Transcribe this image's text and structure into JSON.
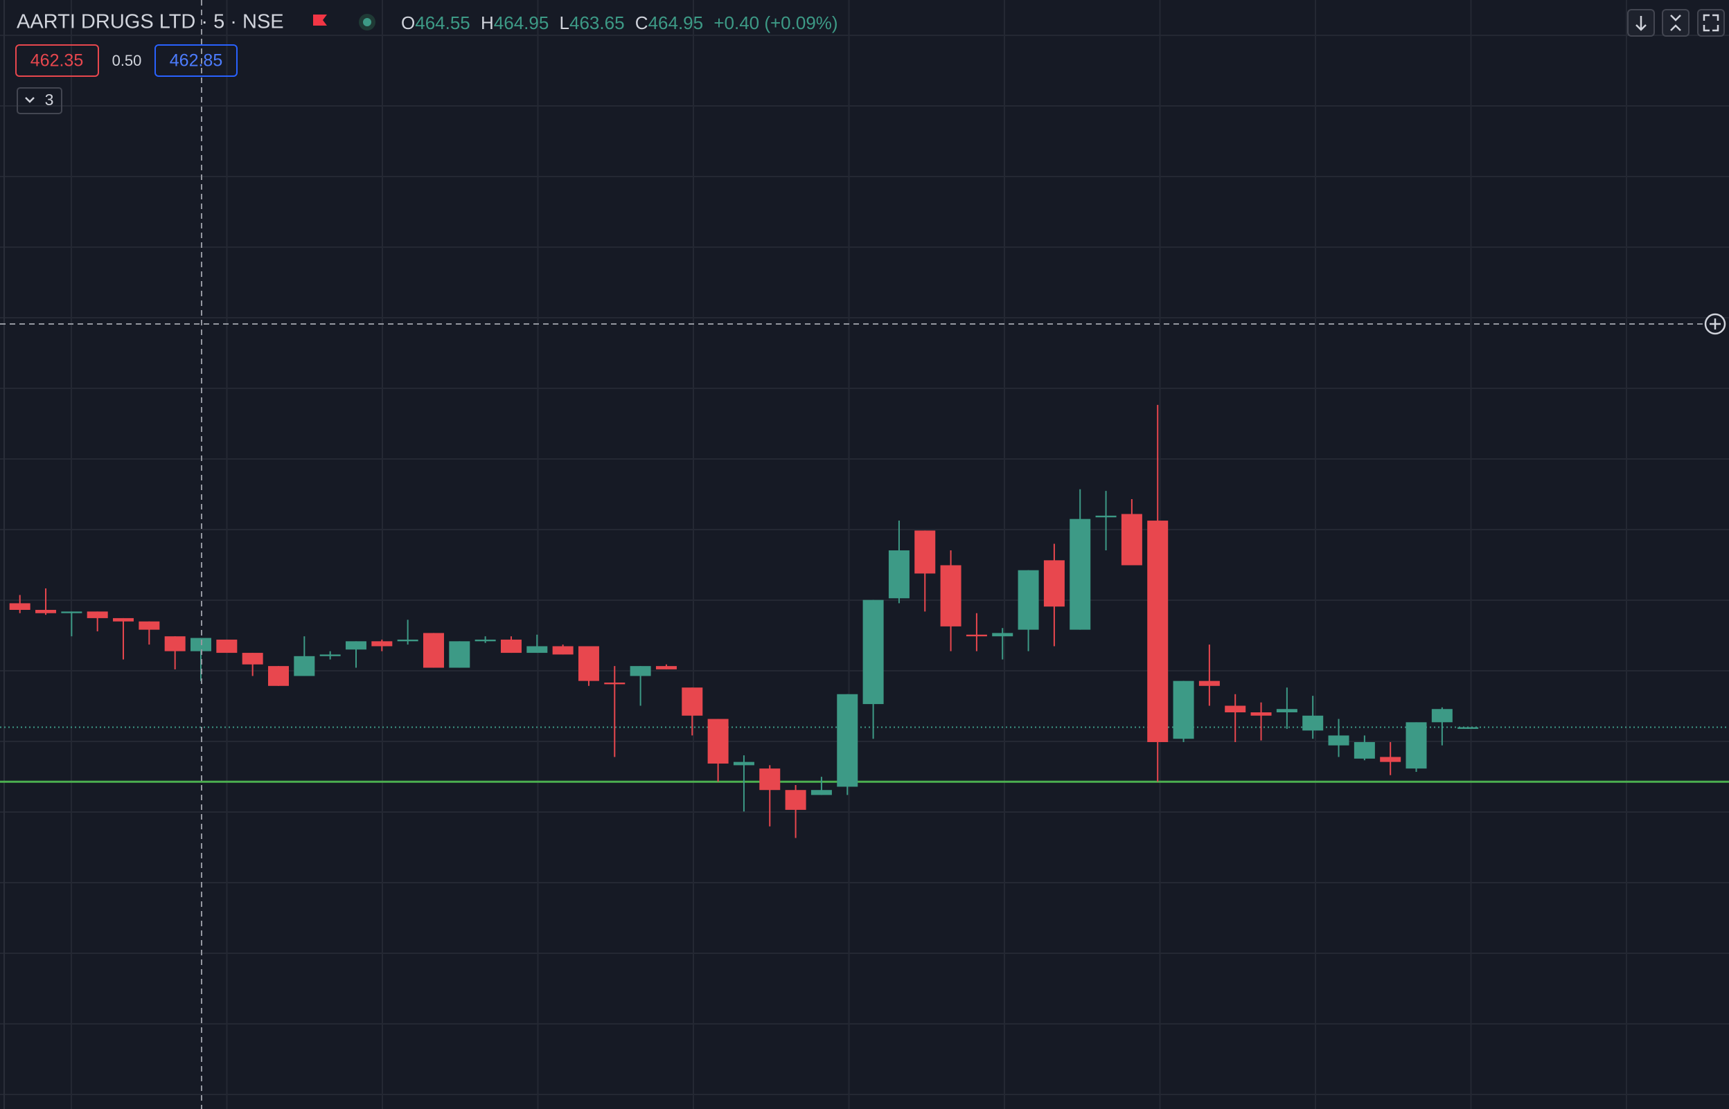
{
  "header": {
    "symbol": "AARTI DRUGS LTD · 5 · NSE",
    "legend": [
      {
        "label": "O",
        "value": "464.55"
      },
      {
        "label": "H",
        "value": "464.95"
      },
      {
        "label": "L",
        "value": "463.65"
      },
      {
        "label": "C",
        "value": "464.95"
      }
    ],
    "change": "+0.40 (+0.09%)",
    "bid": "462.35",
    "spread": "0.50",
    "ask": "462.85",
    "indicators": "3"
  },
  "chart_data": {
    "type": "candlestick",
    "ylim": [
      450.7,
      484.25
    ],
    "up_color": "#3d9a86",
    "down_color": "#e8474e",
    "hline": 460.6,
    "hline_color": "#4caf50",
    "last_price": 462.25,
    "open": [
      466.0,
      465.8,
      465.7,
      465.75,
      465.55,
      465.45,
      465.0,
      464.55,
      464.9,
      464.5,
      464.1,
      463.8,
      464.4,
      464.6,
      464.85,
      464.85,
      465.1,
      464.05,
      464.85,
      464.9,
      464.5,
      464.7,
      464.7,
      463.6,
      463.8,
      464.1,
      463.45,
      462.5,
      461.1,
      461.0,
      460.35,
      460.2,
      460.45,
      462.95,
      466.15,
      468.2,
      467.15,
      465.05,
      465.0,
      465.2,
      467.3,
      465.2,
      468.6,
      468.7,
      468.5,
      461.9,
      463.65,
      462.9,
      462.7,
      462.7,
      462.15,
      461.7,
      461.3,
      461.35,
      461.0,
      462.4,
      462.2
    ],
    "high": [
      466.25,
      466.45,
      465.75,
      465.75,
      465.55,
      465.45,
      465.0,
      464.95,
      464.9,
      464.5,
      464.1,
      465.0,
      464.55,
      464.85,
      464.9,
      465.5,
      465.1,
      464.85,
      465.0,
      465.0,
      465.05,
      464.75,
      464.7,
      464.1,
      464.1,
      464.15,
      463.45,
      462.5,
      461.4,
      461.1,
      460.5,
      460.75,
      463.25,
      466.1,
      468.5,
      468.2,
      467.6,
      465.7,
      465.25,
      467.0,
      467.8,
      469.45,
      469.4,
      469.15,
      472.0,
      463.65,
      464.75,
      463.25,
      463.0,
      463.45,
      463.2,
      462.5,
      462.0,
      461.8,
      462.4,
      462.85,
      462.25
    ],
    "low": [
      465.7,
      465.65,
      465.0,
      465.15,
      464.3,
      464.75,
      464.0,
      463.65,
      464.5,
      463.8,
      463.5,
      463.8,
      464.3,
      464.05,
      464.55,
      464.75,
      464.05,
      464.05,
      464.8,
      464.5,
      464.5,
      464.45,
      463.5,
      461.35,
      462.9,
      464.0,
      462.0,
      460.6,
      459.7,
      459.25,
      458.9,
      460.2,
      460.2,
      461.9,
      466.0,
      465.75,
      464.55,
      464.55,
      464.3,
      464.55,
      464.7,
      465.2,
      467.6,
      467.15,
      460.6,
      461.8,
      462.9,
      461.8,
      461.85,
      462.2,
      461.9,
      461.35,
      461.25,
      460.8,
      460.9,
      461.7,
      462.2
    ],
    "close": [
      465.8,
      465.7,
      465.75,
      465.55,
      465.45,
      465.2,
      464.55,
      464.95,
      464.5,
      464.15,
      463.5,
      464.4,
      464.45,
      464.85,
      464.7,
      464.9,
      464.05,
      464.85,
      464.9,
      464.5,
      464.7,
      464.45,
      463.65,
      463.55,
      464.1,
      464.0,
      462.6,
      461.15,
      461.2,
      460.35,
      459.75,
      460.35,
      463.25,
      466.1,
      467.6,
      466.9,
      465.3,
      465.0,
      465.1,
      467.0,
      465.9,
      468.55,
      468.65,
      467.15,
      461.8,
      463.65,
      463.5,
      462.7,
      462.6,
      462.8,
      462.6,
      462.0,
      461.8,
      461.2,
      462.4,
      462.8,
      462.25
    ]
  }
}
